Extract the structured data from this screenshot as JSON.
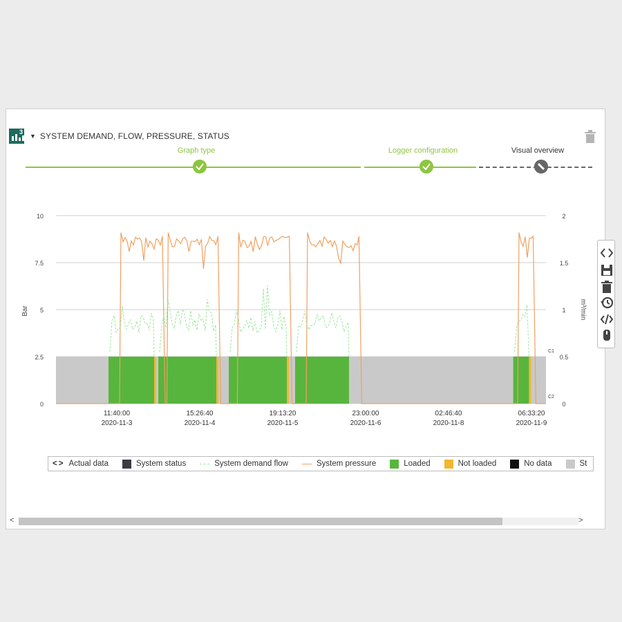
{
  "panel": {
    "logo_sup": "3",
    "title": "SYSTEM DEMAND, FLOW, PRESSURE, STATUS"
  },
  "steps": [
    {
      "label": "Graph type",
      "state": "done",
      "color": "#8dc63f"
    },
    {
      "label": "Logger configuration",
      "state": "done",
      "color": "#8dc63f"
    },
    {
      "label": "Visual overview",
      "state": "pending",
      "color": "#333333"
    }
  ],
  "chart_data": {
    "type": "line",
    "left_axis": {
      "label": "Bar",
      "ticks": [
        "0",
        "2.5",
        "5",
        "7.5",
        "10"
      ],
      "range": [
        0,
        10
      ]
    },
    "right_axis": {
      "label": "m³/min",
      "ticks": [
        "0",
        "0.5",
        "1",
        "1.5",
        "2"
      ],
      "range": [
        0,
        2
      ]
    },
    "x_ticks": [
      {
        "time": "11:40:00",
        "date": "2020-11-3"
      },
      {
        "time": "15:26:40",
        "date": "2020-11-4"
      },
      {
        "time": "19:13:20",
        "date": "2020-11-5"
      },
      {
        "time": "23:00:00",
        "date": "2020-11-6"
      },
      {
        "time": "02:46:40",
        "date": "2020-11-8"
      },
      {
        "time": "06:33:20",
        "date": "2020-11-9"
      }
    ],
    "band_labels": [
      "C1",
      "C2"
    ],
    "loaded_periods_x_tick_units": [
      [
        -0.1,
        0.45
      ],
      [
        0.5,
        1.2
      ],
      [
        1.35,
        2.05
      ],
      [
        2.15,
        2.8
      ],
      [
        4.78,
        4.97
      ]
    ],
    "not_loaded_markers_x_tick_units": [
      0.45,
      1.2,
      2.05,
      4.97
    ],
    "pressure_on_periods_x_tick_units": [
      [
        0.05,
        0.55
      ],
      [
        0.62,
        1.22
      ],
      [
        1.47,
        2.08
      ],
      [
        2.3,
        2.92
      ],
      [
        4.85,
        5.02
      ]
    ],
    "pressure_level_bar": 8.9,
    "flow_level_m3min": 0.9
  },
  "legend": [
    {
      "label": "Actual data",
      "type": "icon",
      "color": "#333333"
    },
    {
      "label": "System status",
      "type": "box",
      "color": "#3b3b44"
    },
    {
      "label": "System demand flow",
      "type": "dash",
      "color": "#9be69b"
    },
    {
      "label": "System pressure",
      "type": "line",
      "color": "#f0a060"
    },
    {
      "label": "Loaded",
      "type": "box",
      "color": "#57b53d"
    },
    {
      "label": "Not loaded",
      "type": "box",
      "color": "#f0b72f"
    },
    {
      "label": "No data",
      "type": "box",
      "color": "#111111"
    },
    {
      "label": "St",
      "type": "box",
      "color": "#c9c9c9"
    }
  ],
  "toolbar": [
    "code-icon",
    "save-icon",
    "trash-icon",
    "history-icon",
    "embed-icon",
    "mouse-icon"
  ]
}
